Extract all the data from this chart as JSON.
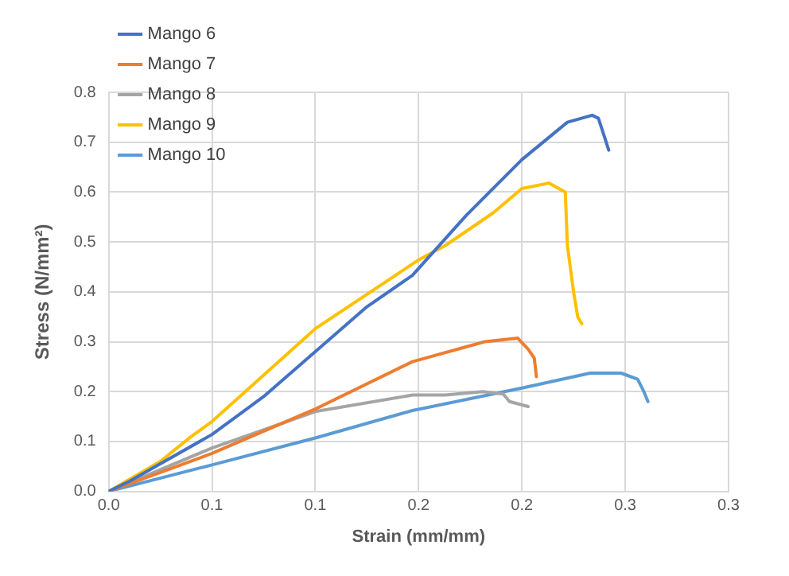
{
  "chart_data": {
    "type": "line",
    "xlabel": "Strain (mm/mm)",
    "ylabel": "Stress (N/mm²)",
    "xlim": [
      0,
      0.3
    ],
    "xticks": [
      {
        "value": 0,
        "label": "0.0"
      },
      {
        "value": 0.05,
        "label": "0.1"
      },
      {
        "value": 0.1,
        "label": "0.1"
      },
      {
        "value": 0.15,
        "label": "0.2"
      },
      {
        "value": 0.2,
        "label": "0.2"
      },
      {
        "value": 0.25,
        "label": "0.3"
      },
      {
        "value": 0.3,
        "label": "0.3"
      }
    ],
    "ylim": [
      0,
      0.8
    ],
    "yticks": [
      {
        "value": 0,
        "label": "0.0"
      },
      0.1,
      0.2,
      0.3,
      0.4,
      0.5,
      0.6,
      0.7,
      0.8
    ],
    "grid": true,
    "legend": "top left",
    "marker": "none",
    "line_style": "solid",
    "series": [
      {
        "name": "Mango 6",
        "color": "#4472c4",
        "x": [
          0,
          0.01,
          0.05,
          0.075,
          0.1,
          0.125,
          0.147,
          0.173,
          0.2,
          0.222,
          0.234,
          0.237,
          0.24,
          0.242
        ],
        "values": [
          0,
          0.02,
          0.114,
          0.19,
          0.28,
          0.37,
          0.433,
          0.553,
          0.665,
          0.74,
          0.754,
          0.748,
          0.71,
          0.684
        ]
      },
      {
        "name": "Mango 7",
        "color": "#ed7d31",
        "x": [
          0,
          0.05,
          0.1,
          0.147,
          0.182,
          0.198,
          0.203,
          0.206,
          0.207
        ],
        "values": [
          0,
          0.076,
          0.165,
          0.26,
          0.3,
          0.307,
          0.285,
          0.267,
          0.23
        ]
      },
      {
        "name": "Mango 8",
        "color": "#a5a5a5",
        "x": [
          0,
          0.05,
          0.1,
          0.147,
          0.163,
          0.181,
          0.191,
          0.194,
          0.203
        ],
        "values": [
          0,
          0.087,
          0.16,
          0.193,
          0.193,
          0.2,
          0.195,
          0.18,
          0.17
        ]
      },
      {
        "name": "Mango 9",
        "color": "#ffc000",
        "x": [
          0,
          0.025,
          0.04,
          0.05,
          0.1,
          0.15,
          0.163,
          0.186,
          0.2,
          0.213,
          0.221,
          0.222,
          0.225,
          0.227,
          0.229
        ],
        "values": [
          0,
          0.06,
          0.11,
          0.14,
          0.326,
          0.464,
          0.493,
          0.558,
          0.607,
          0.618,
          0.6,
          0.493,
          0.4,
          0.35,
          0.336
        ]
      },
      {
        "name": "Mango 10",
        "color": "#5b9bd5",
        "x": [
          0,
          0.05,
          0.1,
          0.147,
          0.2,
          0.233,
          0.248,
          0.256,
          0.259,
          0.261
        ],
        "values": [
          0,
          0.053,
          0.107,
          0.162,
          0.207,
          0.237,
          0.237,
          0.225,
          0.2,
          0.18
        ]
      }
    ]
  }
}
